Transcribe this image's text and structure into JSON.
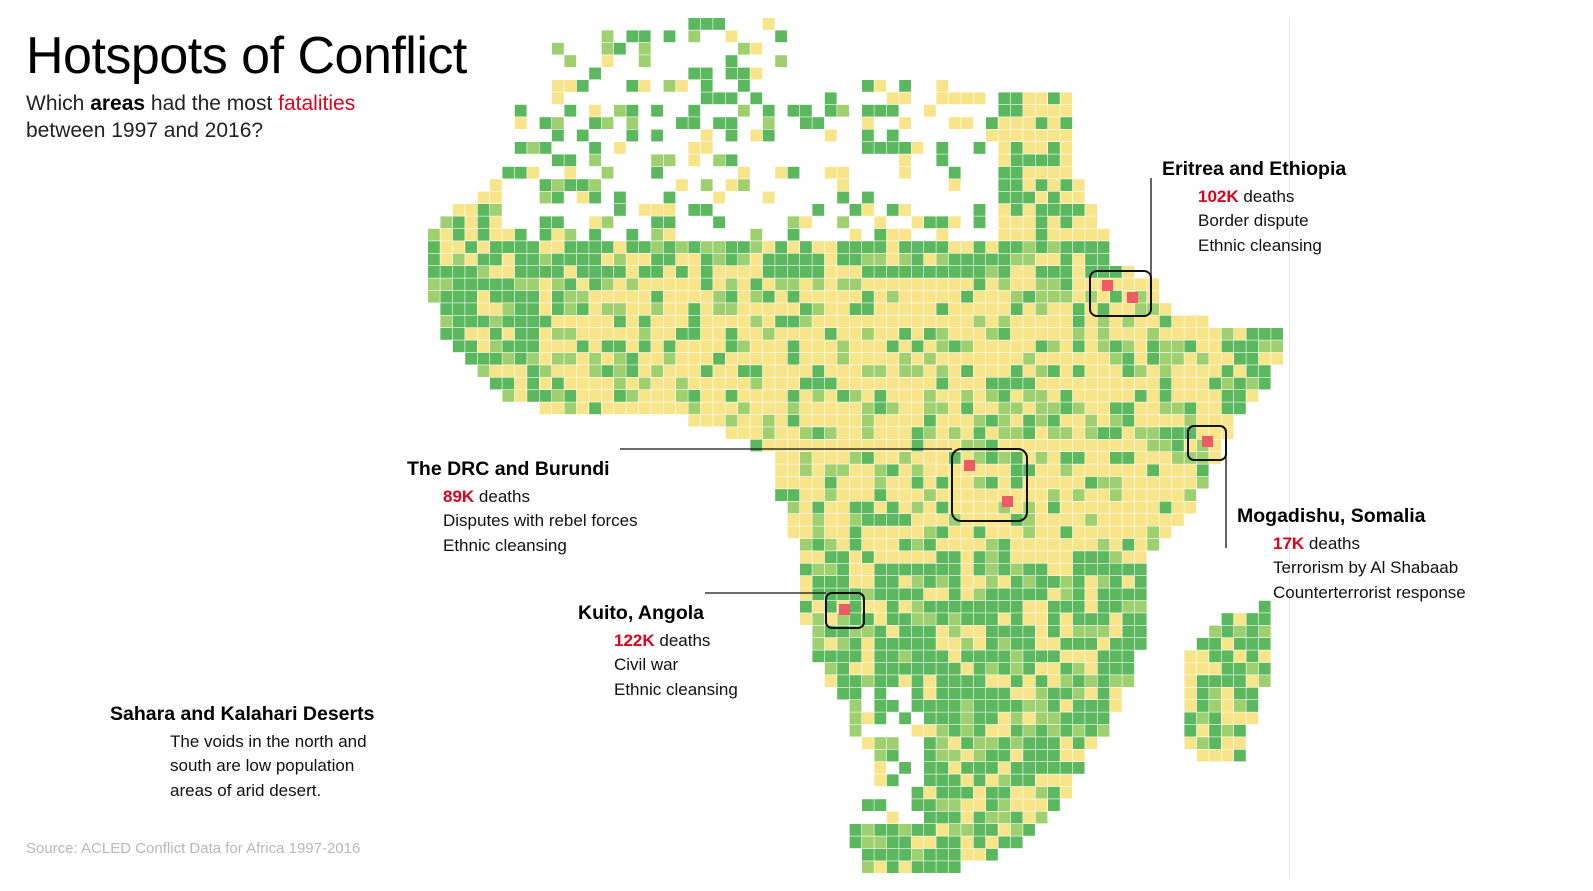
{
  "title": "Hotspots of Conflict",
  "subtitle": {
    "part1": "Which ",
    "areas": "areas",
    "part2": " had the most ",
    "fatalities": "fatalities",
    "line2": "between 1997 and 2016?"
  },
  "colors": {
    "low": "#5cb85f",
    "low_mid": "#9fd070",
    "mid": "#f8e58a",
    "high": "#ee5a66",
    "frame": "#111111",
    "accent_text": "#e0001b"
  },
  "annotations": {
    "eritrea": {
      "title": "Eritrea and Ethiopia",
      "deaths_value": "102K",
      "deaths_label": " deaths",
      "line1": "Border dispute",
      "line2": "Ethnic cleansing"
    },
    "somalia": {
      "title": "Mogadishu, Somalia",
      "deaths_value": "17K",
      "deaths_label": " deaths",
      "line1": "Terrorism by Al Shabaab",
      "line2": "Counterterrorist response"
    },
    "drc": {
      "title": "The DRC and Burundi",
      "deaths_value": "89K",
      "deaths_label": " deaths",
      "line1": "Disputes with rebel forces",
      "line2": "Ethnic cleansing"
    },
    "angola": {
      "title": "Kuito, Angola",
      "deaths_value": "122K",
      "deaths_label": " deaths",
      "line1": "Civil war",
      "line2": "Ethnic cleansing"
    },
    "deserts": {
      "title": "Sahara and Kalahari Deserts",
      "line1": "The voids in the north and",
      "line2": "south are low population",
      "line3": "areas of arid desert."
    }
  },
  "source": "Source: ACLED Conflict Data for Africa 1997-2016"
}
